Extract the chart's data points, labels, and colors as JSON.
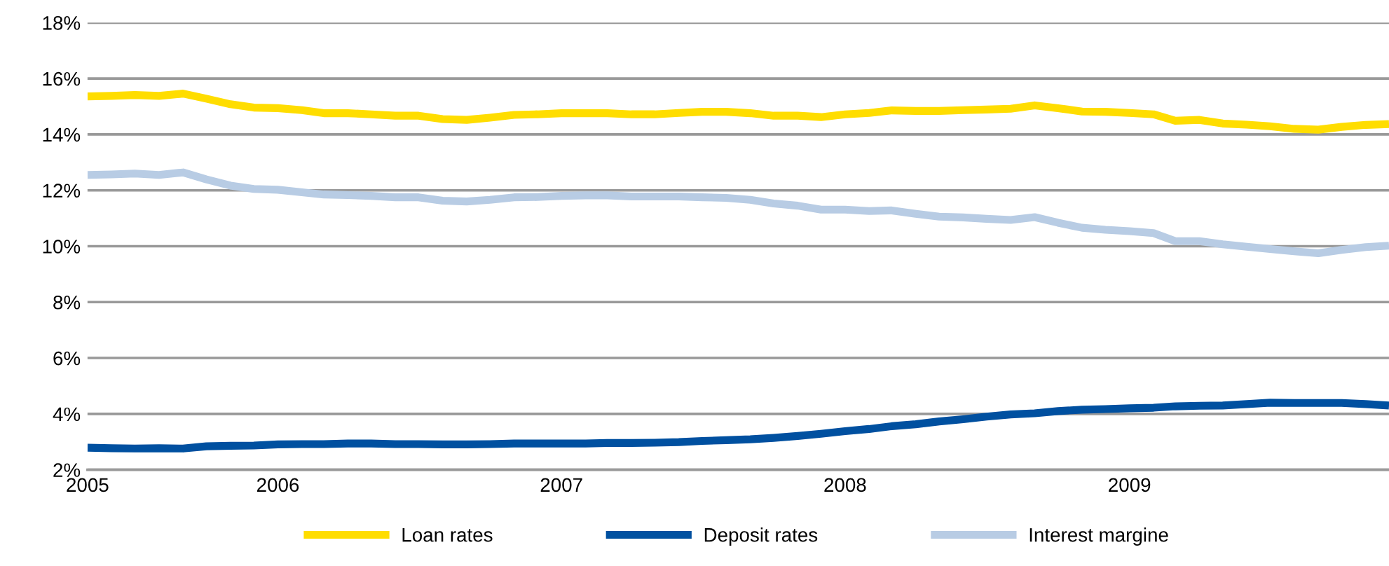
{
  "chart_data": {
    "type": "line",
    "x": [
      "2005-05",
      "2005-06",
      "2005-07",
      "2005-08",
      "2005-09",
      "2005-10",
      "2005-11",
      "2005-12",
      "2006-01",
      "2006-02",
      "2006-03",
      "2006-04",
      "2006-05",
      "2006-06",
      "2006-07",
      "2006-08",
      "2006-09",
      "2006-10",
      "2006-11",
      "2006-12",
      "2007-01",
      "2007-02",
      "2007-03",
      "2007-04",
      "2007-05",
      "2007-06",
      "2007-07",
      "2007-08",
      "2007-09",
      "2007-10",
      "2007-11",
      "2007-12",
      "2008-01",
      "2008-02",
      "2008-03",
      "2008-04",
      "2008-05",
      "2008-06",
      "2008-07",
      "2008-08",
      "2008-09",
      "2008-10",
      "2008-11",
      "2008-12",
      "2009-01",
      "2009-02",
      "2009-03",
      "2009-04",
      "2009-05",
      "2009-06",
      "2009-07",
      "2009-08",
      "2009-09",
      "2009-10",
      "2009-11",
      "2009-12"
    ],
    "series": [
      {
        "name": "Loan rates",
        "color": "#ffdd00",
        "values": [
          15.36,
          15.38,
          15.41,
          15.38,
          15.46,
          15.28,
          15.08,
          14.96,
          14.94,
          14.87,
          14.76,
          14.76,
          14.72,
          14.67,
          14.67,
          14.55,
          14.52,
          14.6,
          14.7,
          14.72,
          14.76,
          14.76,
          14.76,
          14.72,
          14.72,
          14.77,
          14.81,
          14.81,
          14.76,
          14.67,
          14.67,
          14.62,
          14.72,
          14.77,
          14.86,
          14.84,
          14.84,
          14.87,
          14.89,
          14.92,
          15.04,
          14.94,
          14.82,
          14.81,
          14.77,
          14.72,
          14.49,
          14.52,
          14.39,
          14.35,
          14.29,
          14.2,
          14.17,
          14.27,
          14.34,
          14.37
        ]
      },
      {
        "name": "Deposit rates",
        "color": "#0050a0",
        "values": [
          2.79,
          2.77,
          2.76,
          2.77,
          2.76,
          2.84,
          2.86,
          2.87,
          2.91,
          2.92,
          2.92,
          2.94,
          2.94,
          2.92,
          2.92,
          2.91,
          2.91,
          2.92,
          2.94,
          2.94,
          2.94,
          2.94,
          2.96,
          2.96,
          2.97,
          2.99,
          3.03,
          3.06,
          3.09,
          3.14,
          3.21,
          3.29,
          3.38,
          3.46,
          3.56,
          3.63,
          3.73,
          3.81,
          3.9,
          3.98,
          4.02,
          4.1,
          4.15,
          4.17,
          4.2,
          4.22,
          4.27,
          4.29,
          4.3,
          4.35,
          4.4,
          4.39,
          4.39,
          4.39,
          4.35,
          4.3
        ]
      },
      {
        "name": "Interest margine",
        "color": "#b8cce4",
        "values": [
          12.55,
          12.57,
          12.6,
          12.55,
          12.64,
          12.39,
          12.17,
          12.05,
          12.02,
          11.93,
          11.85,
          11.83,
          11.8,
          11.75,
          11.75,
          11.63,
          11.6,
          11.66,
          11.75,
          11.76,
          11.8,
          11.82,
          11.82,
          11.78,
          11.78,
          11.78,
          11.75,
          11.73,
          11.66,
          11.53,
          11.45,
          11.31,
          11.31,
          11.26,
          11.28,
          11.16,
          11.06,
          11.03,
          10.98,
          10.94,
          11.04,
          10.84,
          10.66,
          10.59,
          10.54,
          10.47,
          10.18,
          10.18,
          10.07,
          9.98,
          9.9,
          9.82,
          9.75,
          9.87,
          9.97,
          10.02
        ]
      }
    ],
    "xlim": [
      "2005-05",
      "2009-12"
    ],
    "xticks": [
      {
        "value": "2005-05",
        "label": "2005"
      },
      {
        "value": "2006-01",
        "label": "2006"
      },
      {
        "value": "2007-01",
        "label": "2007"
      },
      {
        "value": "2008-01",
        "label": "2008"
      },
      {
        "value": "2009-01",
        "label": "2009"
      }
    ],
    "ylim": [
      2,
      18
    ],
    "yticks": [
      {
        "value": 2,
        "label": "2%"
      },
      {
        "value": 4,
        "label": "4%"
      },
      {
        "value": 6,
        "label": "6%"
      },
      {
        "value": 8,
        "label": "8%"
      },
      {
        "value": 10,
        "label": "10%"
      },
      {
        "value": 12,
        "label": "12%"
      },
      {
        "value": 14,
        "label": "14%"
      },
      {
        "value": 16,
        "label": "16%"
      },
      {
        "value": 18,
        "label": "18%"
      }
    ],
    "grid": "y",
    "legend": "bottom",
    "line_style": "solid",
    "marker": "none"
  }
}
